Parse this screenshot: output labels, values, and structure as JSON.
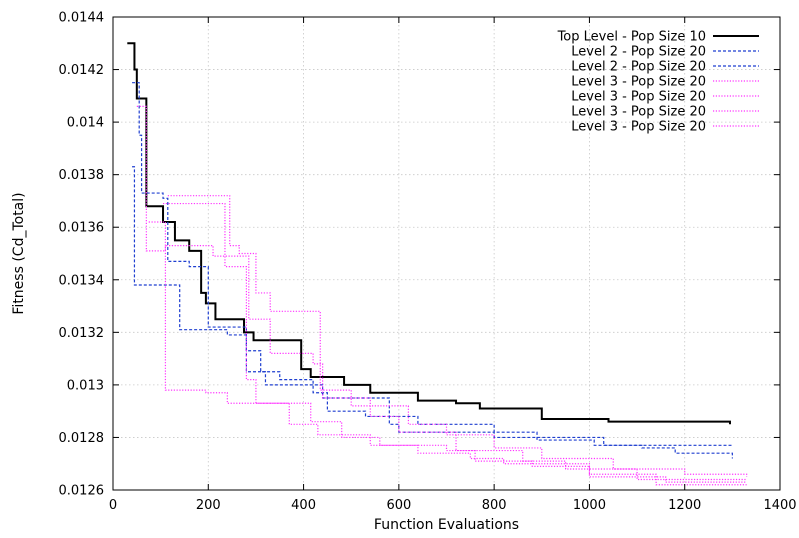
{
  "chart_data": {
    "type": "line",
    "xlabel": "Function Evaluations",
    "ylabel": "Fitness (Cd_Total)",
    "xlim": [
      0,
      1400
    ],
    "ylim": [
      0.0126,
      0.0144
    ],
    "x_ticks": [
      0,
      200,
      400,
      600,
      800,
      1000,
      1200,
      1400
    ],
    "x_tick_labels": [
      "0",
      "200",
      "400",
      "600",
      "800",
      "1000",
      "1200",
      "1400"
    ],
    "y_ticks": [
      0.0126,
      0.0128,
      0.013,
      0.0132,
      0.0134,
      0.0136,
      0.0138,
      0.014,
      0.0142,
      0.0144
    ],
    "y_tick_labels": [
      "0.0126",
      "0.0128",
      "0.013",
      "0.0132",
      "0.0134",
      "0.0136",
      "0.0138",
      "0.014",
      "0.0142",
      "0.0144"
    ],
    "grid": true,
    "legend_position": "top-right",
    "series": [
      {
        "name": "Top Level - Pop Size 10",
        "color": "#000000",
        "style": "solid",
        "step": true,
        "points": [
          [
            30,
            0.0143
          ],
          [
            45,
            0.0142
          ],
          [
            50,
            0.01409
          ],
          [
            70,
            0.01368
          ],
          [
            105,
            0.01362
          ],
          [
            130,
            0.01355
          ],
          [
            160,
            0.01351
          ],
          [
            185,
            0.01335
          ],
          [
            195,
            0.01331
          ],
          [
            215,
            0.01325
          ],
          [
            275,
            0.0132
          ],
          [
            295,
            0.01317
          ],
          [
            395,
            0.01306
          ],
          [
            415,
            0.01303
          ],
          [
            485,
            0.013
          ],
          [
            540,
            0.01297
          ],
          [
            640,
            0.01294
          ],
          [
            720,
            0.01293
          ],
          [
            770,
            0.01291
          ],
          [
            900,
            0.01287
          ],
          [
            1040,
            0.01286
          ],
          [
            1290,
            0.01286
          ],
          [
            1295,
            0.01285
          ]
        ]
      },
      {
        "name": "Level 2 - Pop Size 20",
        "color": "#1f3fd0",
        "style": "dashed",
        "step": true,
        "points": [
          [
            40,
            0.01383
          ],
          [
            45,
            0.01338
          ],
          [
            140,
            0.01321
          ],
          [
            240,
            0.01319
          ],
          [
            280,
            0.01313
          ],
          [
            310,
            0.01305
          ],
          [
            350,
            0.01302
          ],
          [
            420,
            0.01297
          ],
          [
            450,
            0.0129
          ],
          [
            530,
            0.01288
          ],
          [
            640,
            0.01285
          ],
          [
            800,
            0.01282
          ],
          [
            890,
            0.01279
          ],
          [
            1010,
            0.01277
          ],
          [
            1300,
            0.01277
          ]
        ]
      },
      {
        "name": "Level 2 - Pop Size 20",
        "color": "#1f3fd0",
        "style": "dashed",
        "step": true,
        "points": [
          [
            40,
            0.01415
          ],
          [
            55,
            0.01395
          ],
          [
            60,
            0.01373
          ],
          [
            105,
            0.01371
          ],
          [
            115,
            0.01347
          ],
          [
            160,
            0.01345
          ],
          [
            200,
            0.01322
          ],
          [
            280,
            0.01305
          ],
          [
            320,
            0.013
          ],
          [
            440,
            0.01295
          ],
          [
            580,
            0.01285
          ],
          [
            600,
            0.01282
          ],
          [
            800,
            0.0128
          ],
          [
            1030,
            0.01277
          ],
          [
            1110,
            0.01276
          ],
          [
            1180,
            0.01274
          ],
          [
            1300,
            0.01272
          ]
        ]
      },
      {
        "name": "Level 3 - Pop Size 20",
        "color": "#ff33ff",
        "style": "dotted",
        "step": true,
        "points": [
          [
            75,
            0.01362
          ],
          [
            110,
            0.01298
          ],
          [
            195,
            0.01297
          ],
          [
            240,
            0.01293
          ],
          [
            370,
            0.01285
          ],
          [
            430,
            0.01281
          ],
          [
            540,
            0.01277
          ],
          [
            700,
            0.01275
          ],
          [
            760,
            0.01271
          ],
          [
            880,
            0.01269
          ],
          [
            1000,
            0.01266
          ],
          [
            1140,
            0.01262
          ],
          [
            1330,
            0.01262
          ]
        ]
      },
      {
        "name": "Level 3 - Pop Size 20",
        "color": "#ff33ff",
        "style": "dotted",
        "step": true,
        "points": [
          [
            50,
            0.01406
          ],
          [
            70,
            0.01351
          ],
          [
            110,
            0.01353
          ],
          [
            210,
            0.01349
          ],
          [
            285,
            0.01325
          ],
          [
            330,
            0.01312
          ],
          [
            420,
            0.01308
          ],
          [
            440,
            0.01295
          ],
          [
            540,
            0.01288
          ],
          [
            600,
            0.01282
          ],
          [
            720,
            0.01275
          ],
          [
            860,
            0.01271
          ],
          [
            950,
            0.01268
          ],
          [
            1100,
            0.01264
          ],
          [
            1330,
            0.01264
          ]
        ]
      },
      {
        "name": "Level 3 - Pop Size 20",
        "color": "#ff33ff",
        "style": "dotted",
        "step": true,
        "points": [
          [
            105,
            0.01369
          ],
          [
            225,
            0.01369
          ],
          [
            235,
            0.01345
          ],
          [
            280,
            0.01302
          ],
          [
            300,
            0.01293
          ],
          [
            415,
            0.01286
          ],
          [
            480,
            0.0128
          ],
          [
            560,
            0.01277
          ],
          [
            640,
            0.01274
          ],
          [
            750,
            0.01272
          ],
          [
            820,
            0.0127
          ],
          [
            1000,
            0.01265
          ],
          [
            1160,
            0.01263
          ],
          [
            1330,
            0.01263
          ]
        ]
      },
      {
        "name": "Level 3 - Pop Size 20",
        "color": "#ff33ff",
        "style": "dotted",
        "step": true,
        "points": [
          [
            115,
            0.01372
          ],
          [
            245,
            0.01353
          ],
          [
            265,
            0.0135
          ],
          [
            300,
            0.01335
          ],
          [
            330,
            0.01328
          ],
          [
            435,
            0.01298
          ],
          [
            500,
            0.01292
          ],
          [
            620,
            0.01285
          ],
          [
            700,
            0.01281
          ],
          [
            800,
            0.01276
          ],
          [
            900,
            0.01272
          ],
          [
            1050,
            0.01268
          ],
          [
            1200,
            0.01266
          ],
          [
            1330,
            0.01265
          ]
        ]
      }
    ]
  }
}
